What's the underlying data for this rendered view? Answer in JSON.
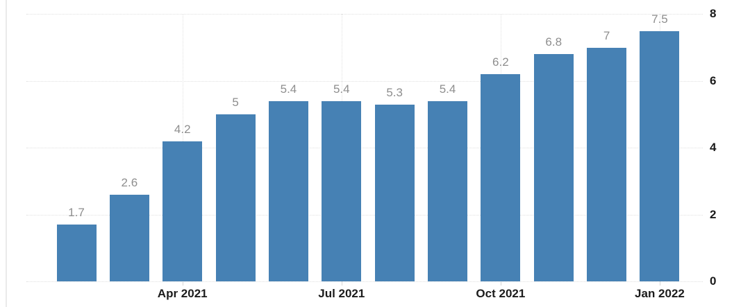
{
  "chart_data": {
    "type": "bar",
    "title": "",
    "xlabel": "",
    "ylabel": "",
    "values": [
      1.7,
      2.6,
      4.2,
      5,
      5.4,
      5.4,
      5.3,
      5.4,
      6.2,
      6.8,
      7,
      7.5
    ],
    "bar_labels": [
      "1.7",
      "2.6",
      "4.2",
      "5",
      "5.4",
      "5.4",
      "5.3",
      "5.4",
      "6.2",
      "6.8",
      "7",
      "7.5"
    ],
    "x_ticks": [
      {
        "bar_index": 2,
        "label": "Apr 2021"
      },
      {
        "bar_index": 5,
        "label": "Jul 2021"
      },
      {
        "bar_index": 8,
        "label": "Oct 2021"
      },
      {
        "bar_index": 11,
        "label": "Jan 2022"
      }
    ],
    "y_ticks": [
      "0",
      "2",
      "4",
      "6",
      "8"
    ],
    "ylim": [
      0,
      8
    ],
    "grid": "dotted",
    "legend": "none",
    "y_axis_position": "right",
    "colors": {
      "bar": "#4681b4",
      "grid": "#e0e0e0",
      "value_label": "#8e8e8e",
      "x_label": "#1c1c1c",
      "y_label": "#1a1a1a",
      "background": "#ffffff",
      "left_border": "#eaeaea"
    }
  }
}
